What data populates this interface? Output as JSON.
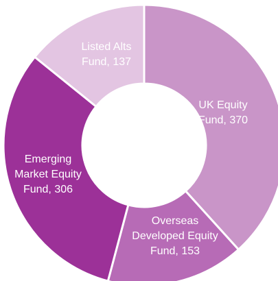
{
  "chart_data": {
    "type": "donut",
    "categories": [
      "UK Equity Fund",
      "Overseas Developed Equity Fund",
      "Emerging Market Equity Fund",
      "Listed Alts Fund"
    ],
    "values": [
      370,
      153,
      306,
      137
    ],
    "separator": ",",
    "colors": [
      "#c995c8",
      "#b76bb6",
      "#9c3198",
      "#e3c5e2"
    ]
  }
}
